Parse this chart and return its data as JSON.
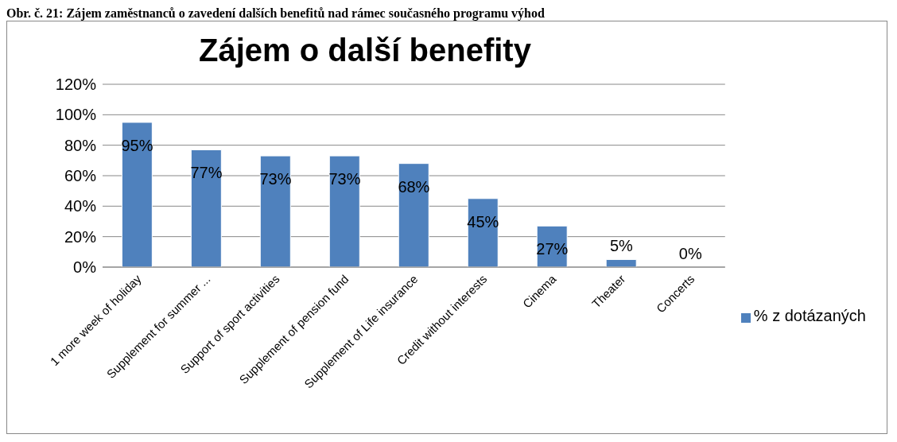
{
  "chart_data": {
    "type": "bar",
    "title": "Zájem o další benefity",
    "annotations": [
      "Obr. č. 21: Zájem zaměstnanců o zavedení dalších benefitů nad rámec současného programu výhod"
    ],
    "categories": [
      "1 more week of holiday",
      "Supplement for summer ...",
      "Support of sport activities",
      "Supplement of pension fund",
      "Supplement of Life insurance",
      "Credit without interests",
      "Cinema",
      "Theater",
      "Concerts"
    ],
    "series": [
      {
        "name": "% z dotázaných",
        "color": "#4f81bd",
        "values": [
          95,
          77,
          73,
          73,
          68,
          45,
          27,
          5,
          0
        ],
        "value_labels": [
          "95%",
          "77%",
          "73%",
          "73%",
          "68%",
          "45%",
          "27%",
          "5%",
          "0%"
        ]
      }
    ],
    "ylim": [
      0,
      120
    ],
    "yticks": [
      {
        "value": 0,
        "label": "0%"
      },
      {
        "value": 20,
        "label": "20%"
      },
      {
        "value": 40,
        "label": "40%"
      },
      {
        "value": 60,
        "label": "60%"
      },
      {
        "value": 80,
        "label": "80%"
      },
      {
        "value": 100,
        "label": "100%"
      },
      {
        "value": 120,
        "label": "120%"
      }
    ],
    "grid": "y",
    "legend": "right"
  }
}
